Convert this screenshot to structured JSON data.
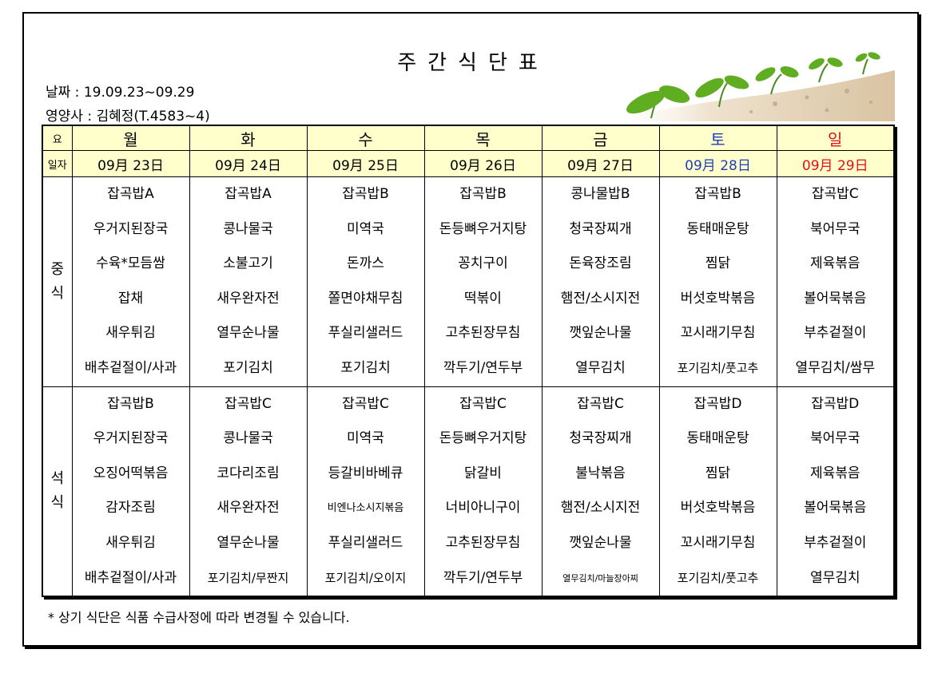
{
  "title": "주간식단표",
  "date_line": "날짜 : 19.09.23~09.29",
  "nutritionist_line": "영양사 : 김혜정(T.4583~4)",
  "header": {
    "corner_day": "요",
    "corner_date": "일자",
    "days": [
      "월",
      "화",
      "수",
      "목",
      "금",
      "토",
      "일"
    ],
    "dates": [
      "09月 23日",
      "09月 24日",
      "09月 25日",
      "09月 26日",
      "09月 27日",
      "09月 28日",
      "09月 29日"
    ]
  },
  "colors": {
    "header_bg": "#ffffcc",
    "saturday": "#1f3fb8",
    "sunday": "#e0101a"
  },
  "lunch": {
    "label_1": "중",
    "label_2": "식",
    "days": [
      [
        "잡곡밥A",
        "우거지된장국",
        "수육*모듬쌈",
        "잡채",
        "새우튀김",
        "배추겉절이/사과"
      ],
      [
        "잡곡밥A",
        "콩나물국",
        "소불고기",
        "새우완자전",
        "열무순나물",
        "포기김치"
      ],
      [
        "잡곡밥B",
        "미역국",
        "돈까스",
        "쫄면야채무침",
        "푸실리샐러드",
        "포기김치"
      ],
      [
        "잡곡밥B",
        "돈등뼈우거지탕",
        "꽁치구이",
        "떡볶이",
        "고추된장무침",
        "깍두기/연두부"
      ],
      [
        "콩나물밥B",
        "청국장찌개",
        "돈육장조림",
        "햄전/소시지전",
        "깻잎순나물",
        "열무김치"
      ],
      [
        "잡곡밥B",
        "동태매운탕",
        "찜닭",
        "버섯호박볶음",
        "꼬시래기무침",
        "포기김치/풋고추"
      ],
      [
        "잡곡밥C",
        "북어무국",
        "제육볶음",
        "볼어묵볶음",
        "부추겉절이",
        "열무김치/쌈무"
      ]
    ]
  },
  "dinner": {
    "label_1": "석",
    "label_2": "식",
    "days": [
      [
        "잡곡밥B",
        "우거지된장국",
        "오징어떡볶음",
        "감자조림",
        "새우튀김",
        "배추겉절이/사과"
      ],
      [
        "잡곡밥C",
        "콩나물국",
        "코다리조림",
        "새우완자전",
        "열무순나물",
        "포기김치/무짠지"
      ],
      [
        "잡곡밥C",
        "미역국",
        "등갈비바베큐",
        "비엔나소시지볶음",
        "푸실리샐러드",
        "포기김치/오이지"
      ],
      [
        "잡곡밥C",
        "돈등뼈우거지탕",
        "닭갈비",
        "너비아니구이",
        "고추된장무침",
        "깍두기/연두부"
      ],
      [
        "잡곡밥C",
        "청국장찌개",
        "불낙볶음",
        "햄전/소시지전",
        "깻잎순나물",
        "열무김치/마늘장아찌"
      ],
      [
        "잡곡밥D",
        "동태매운탕",
        "찜닭",
        "버섯호박볶음",
        "꼬시래기무침",
        "포기김치/풋고추"
      ],
      [
        "잡곡밥D",
        "북어무국",
        "제육볶음",
        "볼어묵볶음",
        "부추겉절이",
        "열무김치"
      ]
    ]
  },
  "footnote": "* 상기 식단은 식품 수급사정에 따라 변경될 수 있습니다."
}
